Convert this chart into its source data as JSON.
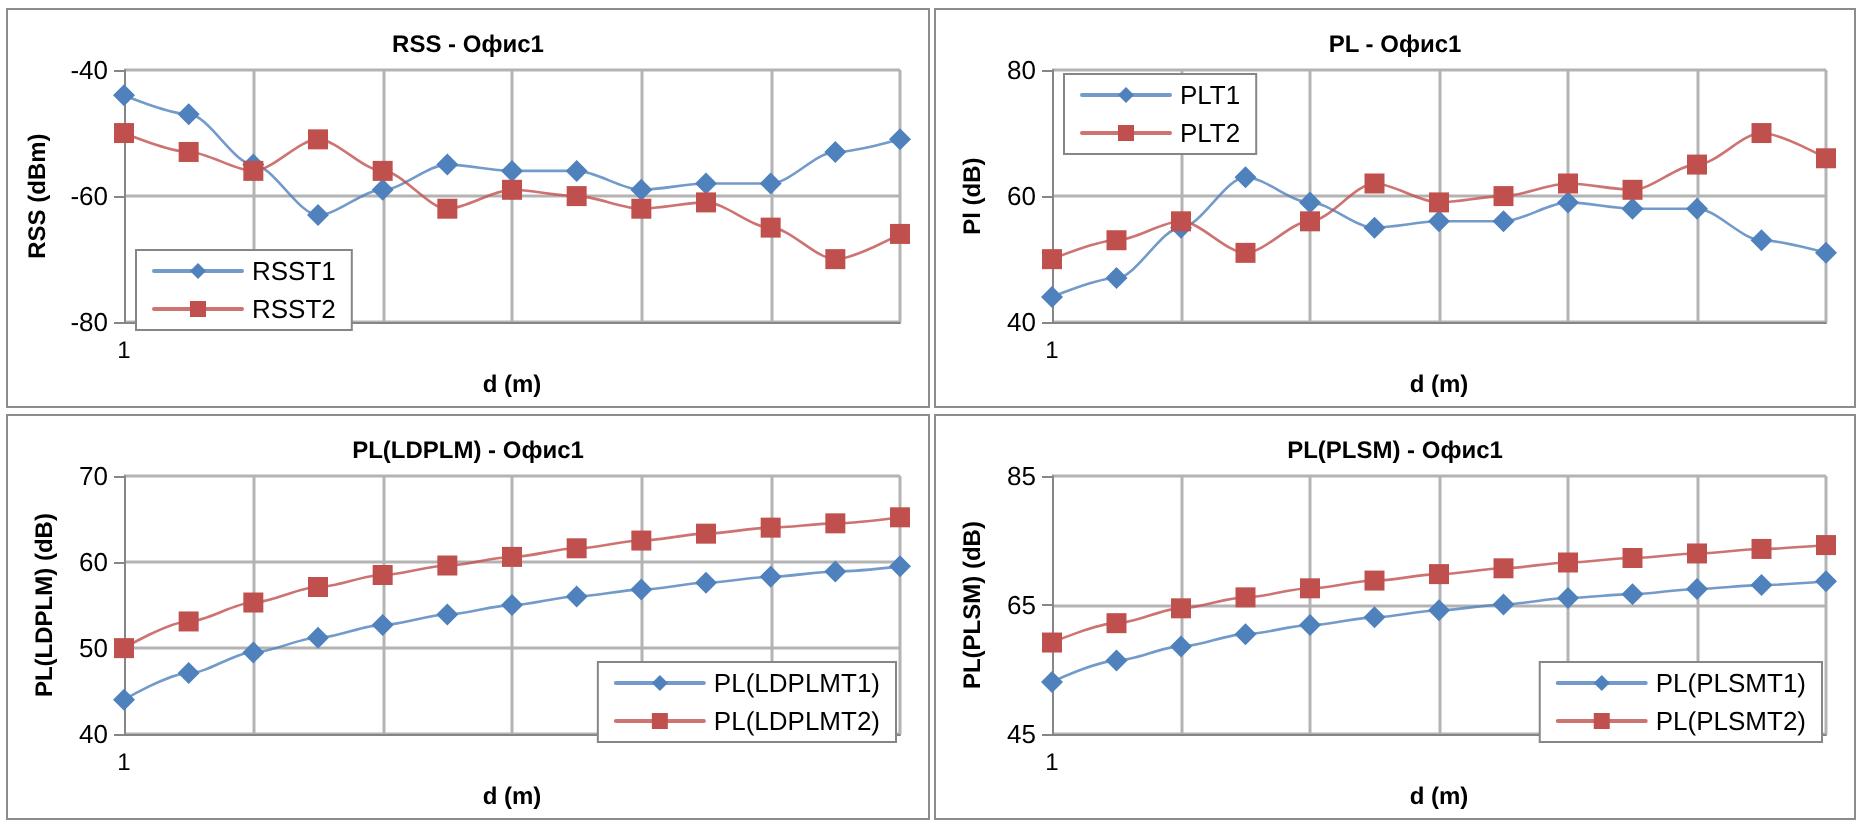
{
  "chart_data": [
    {
      "type": "line",
      "title": "RSS - Офис1",
      "xlabel": "d (m)",
      "ylabel": "RSS (dBm)",
      "grid": true,
      "legend": "bottom left",
      "categories": [
        "1",
        null,
        null,
        null,
        null,
        null,
        null,
        null,
        null,
        null,
        null,
        null,
        null
      ],
      "ylim": [
        -80,
        -40
      ],
      "yticks": [
        -80,
        -60,
        -40
      ],
      "series": [
        {
          "name": "RSST1",
          "color": "#4f81bd",
          "marker": "diamond",
          "values": [
            -44,
            -47,
            -55,
            -63,
            -59,
            -55,
            -56,
            -56,
            -59,
            -58,
            -58,
            -53,
            -51
          ]
        },
        {
          "name": "RSST2",
          "color": "#c0504d",
          "marker": "square",
          "values": [
            -50,
            -53,
            -56,
            -51,
            -56,
            -62,
            -59,
            -60,
            -62,
            -61,
            -65,
            -70,
            -66
          ]
        }
      ]
    },
    {
      "type": "line",
      "title": "PL - Офис1",
      "xlabel": "d (m)",
      "ylabel": "Pl (dB)",
      "grid": true,
      "legend": "top left",
      "categories": [
        "1",
        null,
        null,
        null,
        null,
        null,
        null,
        null,
        null,
        null,
        null,
        null,
        null
      ],
      "ylim": [
        40,
        80
      ],
      "yticks": [
        40,
        60,
        80
      ],
      "series": [
        {
          "name": "PLT1",
          "color": "#4f81bd",
          "marker": "diamond",
          "values": [
            44,
            47,
            55,
            63,
            59,
            55,
            56,
            56,
            59,
            58,
            58,
            53,
            51
          ]
        },
        {
          "name": "PLT2",
          "color": "#c0504d",
          "marker": "square",
          "values": [
            50,
            53,
            56,
            51,
            56,
            62,
            59,
            60,
            62,
            61,
            65,
            70,
            66
          ]
        }
      ]
    },
    {
      "type": "line",
      "title": "PL(LDPLM) - Офис1",
      "xlabel": "d (m)",
      "ylabel": "PL(LDPLM) (dB)",
      "grid": true,
      "legend": "bottom right",
      "categories": [
        "1",
        null,
        null,
        null,
        null,
        null,
        null,
        null,
        null,
        null,
        null,
        null,
        null
      ],
      "ylim": [
        40,
        70
      ],
      "yticks": [
        40,
        50,
        60,
        70
      ],
      "series": [
        {
          "name": "PL(LDPLMT1)",
          "color": "#4f81bd",
          "marker": "diamond",
          "values": [
            44,
            47.1,
            49.5,
            51.2,
            52.7,
            53.9,
            55,
            56,
            56.8,
            57.6,
            58.3,
            58.9,
            59.5
          ]
        },
        {
          "name": "PL(LDPLMT2)",
          "color": "#c0504d",
          "marker": "square",
          "values": [
            50,
            53.1,
            55.3,
            57.1,
            58.5,
            59.6,
            60.6,
            61.6,
            62.5,
            63.3,
            64,
            64.5,
            65.2
          ]
        }
      ]
    },
    {
      "type": "line",
      "title": "PL(PLSM) - Офис1",
      "xlabel": "d (m)",
      "ylabel": "PL(PLSM) (dB)",
      "grid": true,
      "legend": "bottom right",
      "categories": [
        "1",
        null,
        null,
        null,
        null,
        null,
        null,
        null,
        null,
        null,
        null,
        null,
        null
      ],
      "ylim": [
        45,
        85
      ],
      "yticks": [
        45,
        65,
        85
      ],
      "series": [
        {
          "name": "PL(PLSMT1)",
          "color": "#4f81bd",
          "marker": "diamond",
          "values": [
            53.1,
            56.4,
            58.6,
            60.5,
            61.9,
            63.1,
            64.2,
            65.1,
            66.1,
            66.7,
            67.5,
            68.1,
            68.7
          ]
        },
        {
          "name": "PL(PLSMT2)",
          "color": "#c0504d",
          "marker": "square",
          "values": [
            59.2,
            62.2,
            64.5,
            66.2,
            67.6,
            68.8,
            69.8,
            70.7,
            71.6,
            72.3,
            73,
            73.7,
            74.3
          ]
        }
      ]
    }
  ]
}
